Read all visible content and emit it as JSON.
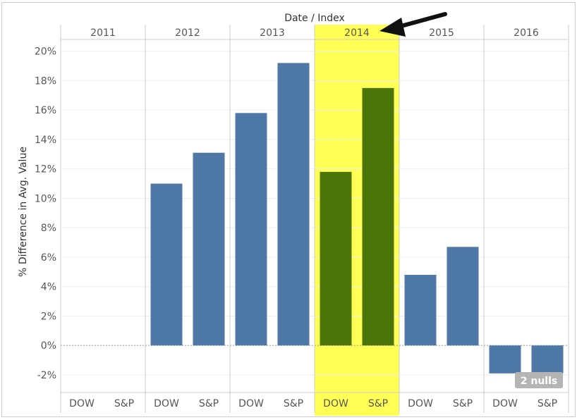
{
  "chart_data": {
    "type": "bar",
    "column_title": "Date / Index",
    "ylabel": "% Difference in Avg. Value",
    "ylim": [
      -3.2,
      20.8
    ],
    "yticks": [
      -2,
      0,
      2,
      4,
      6,
      8,
      10,
      12,
      14,
      16,
      18,
      20
    ],
    "ytick_labels": [
      "-2%",
      "0%",
      "2%",
      "4%",
      "6%",
      "8%",
      "10%",
      "12%",
      "14%",
      "16%",
      "18%",
      "20%"
    ],
    "groups": [
      "2011",
      "2012",
      "2013",
      "2014",
      "2015",
      "2016"
    ],
    "categories": [
      "DOW",
      "S&P"
    ],
    "values": [
      [
        null,
        null
      ],
      [
        11.0,
        13.1
      ],
      [
        15.8,
        19.2
      ],
      [
        11.8,
        17.5
      ],
      [
        4.8,
        6.7
      ],
      [
        -1.9,
        -1.9
      ]
    ],
    "highlight_group": "2014",
    "colors": {
      "bar": "#4e79a7",
      "highlight_bar": "#4b7508",
      "highlight_bg": "#ffff55",
      "grid": "#eeeeee",
      "divider": "#cccccc",
      "badge": "#b4b4b4",
      "arrow": "#111111"
    },
    "nulls_badge": "2 nulls",
    "grid": true
  }
}
